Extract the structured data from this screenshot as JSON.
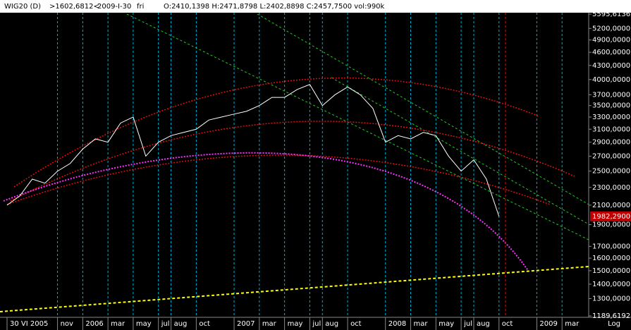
{
  "chart_data": {
    "type": "line",
    "title": "WIG20 (D)",
    "annotations": [
      ">1602,6812<",
      "2009-I-30",
      "fri",
      "O:2410,1398 H:2471,8798 L:2402,8898 C:2457,7500 vol:990k"
    ],
    "x": [
      "2005-07",
      "2005-08",
      "2005-09",
      "2005-10",
      "2005-11",
      "2005-12",
      "2006-01",
      "2006-02",
      "2006-03",
      "2006-04",
      "2006-05",
      "2006-06",
      "2006-07",
      "2006-08",
      "2006-09",
      "2006-10",
      "2006-11",
      "2006-12",
      "2007-01",
      "2007-02",
      "2007-03",
      "2007-04",
      "2007-05",
      "2007-06",
      "2007-07",
      "2007-08",
      "2007-09",
      "2007-10",
      "2007-11",
      "2007-12",
      "2008-01",
      "2008-02",
      "2008-03",
      "2008-04",
      "2008-05",
      "2008-06",
      "2008-07",
      "2008-08",
      "2008-09",
      "2008-10"
    ],
    "series": [
      {
        "name": "WIG20",
        "color": "#ffffff",
        "values": [
          2100,
          2200,
          2400,
          2350,
          2500,
          2600,
          2800,
          2950,
          2900,
          3200,
          3300,
          2700,
          2900,
          3000,
          3050,
          3100,
          3250,
          3300,
          3350,
          3400,
          3500,
          3650,
          3650,
          3800,
          3900,
          3500,
          3700,
          3850,
          3700,
          3450,
          2900,
          3000,
          2950,
          3050,
          3000,
          2700,
          2500,
          2650,
          2400,
          1982.29
        ]
      }
    ],
    "last_price": {
      "value": 1982.29,
      "label": "1982,2900",
      "color": "#c00000"
    },
    "log_scale": true,
    "scale_label": "Log",
    "xlim": [
      "2005-07",
      "2009-05"
    ],
    "xticks": [
      {
        "value": "2005-07",
        "label": "30 VI 2005"
      },
      {
        "value": "2005-11",
        "label": "nov"
      },
      {
        "value": "2006-01",
        "label": "2006"
      },
      {
        "value": "2006-03",
        "label": "mar"
      },
      {
        "value": "2006-05",
        "label": "may"
      },
      {
        "value": "2006-07",
        "label": "jul"
      },
      {
        "value": "2006-08",
        "label": "aug"
      },
      {
        "value": "2006-10",
        "label": "oct"
      },
      {
        "value": "2007-01",
        "label": "2007"
      },
      {
        "value": "2007-03",
        "label": "mar"
      },
      {
        "value": "2007-05",
        "label": "may"
      },
      {
        "value": "2007-07",
        "label": "jul"
      },
      {
        "value": "2007-08",
        "label": "aug"
      },
      {
        "value": "2007-10",
        "label": "oct"
      },
      {
        "value": "2008-01",
        "label": "2008"
      },
      {
        "value": "2008-03",
        "label": "mar"
      },
      {
        "value": "2008-05",
        "label": "may"
      },
      {
        "value": "2008-07",
        "label": "jul"
      },
      {
        "value": "2008-08",
        "label": "aug"
      },
      {
        "value": "2008-10",
        "label": "oct"
      },
      {
        "value": "2009-01",
        "label": "2009"
      },
      {
        "value": "2009-03",
        "label": "mar"
      }
    ],
    "ylim": [
      1189.6192,
      5595.6136
    ],
    "yticks": [
      {
        "value": 5595.6136,
        "label": "5595,6136"
      },
      {
        "value": 5200,
        "label": "5200,0000"
      },
      {
        "value": 4900,
        "label": "4900,0000"
      },
      {
        "value": 4600,
        "label": "4600,0000"
      },
      {
        "value": 4300,
        "label": "4300,0000"
      },
      {
        "value": 4000,
        "label": "4000,0000"
      },
      {
        "value": 3700,
        "label": "3700,0000"
      },
      {
        "value": 3500,
        "label": "3500,0000"
      },
      {
        "value": 3300,
        "label": "3300,0000"
      },
      {
        "value": 3100,
        "label": "3100,0000"
      },
      {
        "value": 2900,
        "label": "2900,0000"
      },
      {
        "value": 2700,
        "label": "2700,0000"
      },
      {
        "value": 2500,
        "label": "2500,0000"
      },
      {
        "value": 2300,
        "label": "2300,0000"
      },
      {
        "value": 2100,
        "label": "2100,0000"
      },
      {
        "value": 1900,
        "label": "1900,0000"
      },
      {
        "value": 1700,
        "label": "1700,0000"
      },
      {
        "value": 1600,
        "label": "1600,0000"
      },
      {
        "value": 1500,
        "label": "1500,0000"
      },
      {
        "value": 1400,
        "label": "1400,0000"
      },
      {
        "value": 1300,
        "label": "1300,0000"
      },
      {
        "value": 1189.6192,
        "label": "1189,6192"
      }
    ],
    "grid": true,
    "grid_color": "#00b0d0"
  }
}
